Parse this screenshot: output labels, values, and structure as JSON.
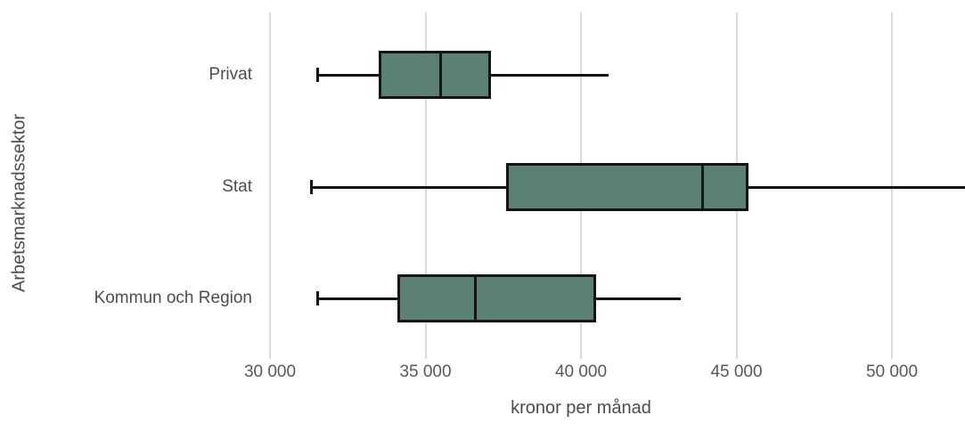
{
  "chart_data": {
    "type": "boxplot",
    "orientation": "horizontal",
    "title": "",
    "xlabel": "kronor per månad",
    "ylabel": "Arbetsmarknadssektor",
    "xlim": [
      30000,
      52400
    ],
    "grid": true,
    "x_ticks": [
      {
        "value": 30000,
        "label": "30 000"
      },
      {
        "value": 35000,
        "label": "35 000"
      },
      {
        "value": 40000,
        "label": "40 000"
      },
      {
        "value": 45000,
        "label": "45 000"
      },
      {
        "value": 50000,
        "label": "50 000"
      }
    ],
    "categories": [
      "Privat",
      "Stat",
      "Kommun och Region"
    ],
    "series": [
      {
        "label": "Privat",
        "min": 31500,
        "q1": 33500,
        "median": 35500,
        "q3": 37100,
        "max": 40900,
        "max_clipped": false
      },
      {
        "label": "Stat",
        "min": 31300,
        "q1": 37600,
        "median": 43900,
        "q3": 45400,
        "max": 52400,
        "max_clipped": true
      },
      {
        "label": "Kommun och Region",
        "min": 31500,
        "q1": 34100,
        "median": 36600,
        "q3": 40500,
        "max": 43200,
        "max_clipped": false
      }
    ],
    "colors": {
      "box_fill": "#5a8173",
      "box_border": "#141414",
      "gridline": "#dadada",
      "text": "#4c4c4c"
    }
  }
}
